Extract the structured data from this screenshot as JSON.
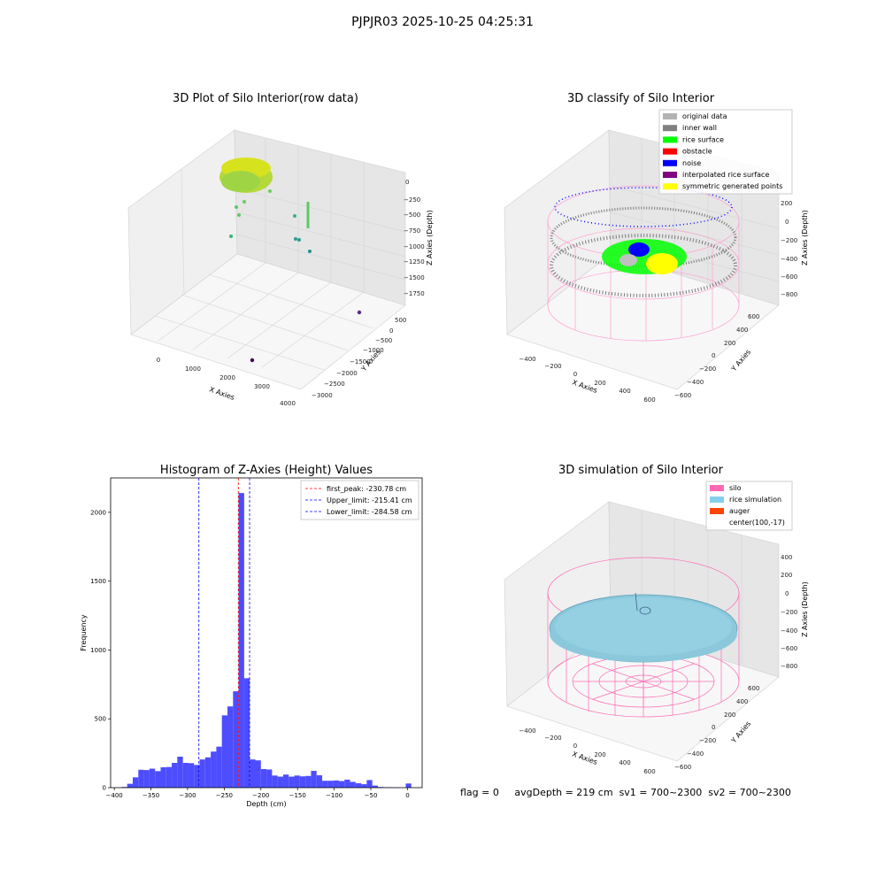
{
  "suptitle": "PJPJR03 2025-10-25 04:25:31",
  "panels": {
    "raw": {
      "title": "3D Plot of Silo Interior(row data)",
      "xlabel": "X Axies",
      "ylabel": "Y Axies",
      "zlabel": "Z Axies (Depth)",
      "xticks": [
        "0",
        "1000",
        "2000",
        "3000",
        "4000"
      ],
      "yticks": [
        "500",
        "0",
        "−500",
        "−1000",
        "−1500",
        "−2000",
        "−2500",
        "−3000"
      ],
      "zticks": [
        "0",
        "−250",
        "−500",
        "−750",
        "−1000",
        "−1250",
        "−1500",
        "−1750"
      ]
    },
    "classify": {
      "title": "3D classify of Silo Interior",
      "xlabel": "X Axies",
      "ylabel": "Y Axies",
      "zlabel": "Z Axies (Depth)",
      "xticks": [
        "−400",
        "−200",
        "0",
        "200",
        "400",
        "600"
      ],
      "yticks": [
        "600",
        "400",
        "200",
        "0",
        "−200",
        "−400",
        "−600"
      ],
      "zticks": [
        "200",
        "0",
        "−200",
        "−400",
        "−600",
        "−800"
      ],
      "legend": [
        {
          "label": "original data",
          "color": "#b3b3b3"
        },
        {
          "label": "inner wall",
          "color": "#808080"
        },
        {
          "label": "rice surface",
          "color": "#00ff00"
        },
        {
          "label": "obstacle",
          "color": "#ff0000"
        },
        {
          "label": "noise",
          "color": "#0000ff"
        },
        {
          "label": "interpolated rice surface",
          "color": "#800080"
        },
        {
          "label": "symmetric generated points",
          "color": "#ffff00"
        }
      ]
    },
    "simulation": {
      "title": "3D simulation of Silo Interior",
      "xlabel": "X Axies",
      "ylabel": "Y Axies",
      "zlabel": "Z Axies (Depth)",
      "xticks": [
        "−400",
        "−200",
        "0",
        "200",
        "400",
        "600"
      ],
      "yticks": [
        "600",
        "400",
        "200",
        "0",
        "−200",
        "−400",
        "−600"
      ],
      "zticks": [
        "400",
        "200",
        "0",
        "−200",
        "−400",
        "−600",
        "−800"
      ],
      "legend": [
        {
          "label": "silo",
          "color": "#ff69b4"
        },
        {
          "label": "rice simulation",
          "color": "#87ceeb"
        },
        {
          "label": "auger",
          "color": "#ff4500"
        },
        {
          "label": "center(100,-17)",
          "color": ""
        }
      ]
    }
  },
  "chart_data": {
    "type": "bar",
    "title": "Histogram of Z-Axies (Height) Values",
    "xlabel": "Depth (cm)",
    "ylabel": "Frequency",
    "xlim": [
      -405,
      20
    ],
    "ylim": [
      0,
      2250
    ],
    "xticks": [
      -400,
      -350,
      -300,
      -250,
      -200,
      -150,
      -100,
      -50,
      0
    ],
    "yticks": [
      0,
      500,
      1000,
      1500,
      2000
    ],
    "bin_width": 7.6,
    "bins": [
      [
        -390,
        5
      ],
      [
        -382.4,
        28
      ],
      [
        -374.8,
        75
      ],
      [
        -367.2,
        130
      ],
      [
        -359.6,
        128
      ],
      [
        -352,
        138
      ],
      [
        -344.4,
        120
      ],
      [
        -336.8,
        148
      ],
      [
        -329.2,
        150
      ],
      [
        -321.6,
        180
      ],
      [
        -314,
        225
      ],
      [
        -306.4,
        180
      ],
      [
        -298.8,
        178
      ],
      [
        -291.2,
        165
      ],
      [
        -283.6,
        205
      ],
      [
        -276,
        220
      ],
      [
        -268.4,
        262
      ],
      [
        -260.8,
        298
      ],
      [
        -253.2,
        525
      ],
      [
        -245.6,
        590
      ],
      [
        -238,
        700
      ],
      [
        -230.4,
        2140
      ],
      [
        -222.8,
        795
      ],
      [
        -215.2,
        205
      ],
      [
        -207.6,
        198
      ],
      [
        -200,
        135
      ],
      [
        -192.4,
        132
      ],
      [
        -184.8,
        88
      ],
      [
        -177.2,
        80
      ],
      [
        -169.6,
        95
      ],
      [
        -162,
        80
      ],
      [
        -154.4,
        88
      ],
      [
        -146.8,
        82
      ],
      [
        -139.2,
        85
      ],
      [
        -131.6,
        122
      ],
      [
        -124,
        90
      ],
      [
        -116.4,
        50
      ],
      [
        -108.8,
        50
      ],
      [
        -101.2,
        52
      ],
      [
        -93.6,
        48
      ],
      [
        -86,
        58
      ],
      [
        -78.4,
        42
      ],
      [
        -70.8,
        32
      ],
      [
        -63.2,
        25
      ],
      [
        -55.6,
        55
      ],
      [
        -48,
        15
      ],
      [
        -40.4,
        5
      ],
      [
        -32.8,
        3
      ],
      [
        -25.2,
        2
      ],
      [
        -17.6,
        1
      ],
      [
        -10,
        0
      ],
      [
        -2.4,
        30
      ]
    ],
    "lines": [
      {
        "label": "first_peak: -230.78 cm",
        "x": -230.78,
        "color": "#ff0000"
      },
      {
        "label": "Upper_limit: -215.41 cm",
        "x": -215.41,
        "color": "#0000ff"
      },
      {
        "label": "Lower_limit: -284.58 cm",
        "x": -284.58,
        "color": "#0000ff"
      }
    ],
    "bar_color": "#4d4dff",
    "legend": "top-right"
  },
  "footer": {
    "flag": "flag = 0",
    "avg": "avgDepth = 219 cm",
    "sv1": "sv1 = 700~2300",
    "sv2": "sv2 = 700~2300"
  }
}
